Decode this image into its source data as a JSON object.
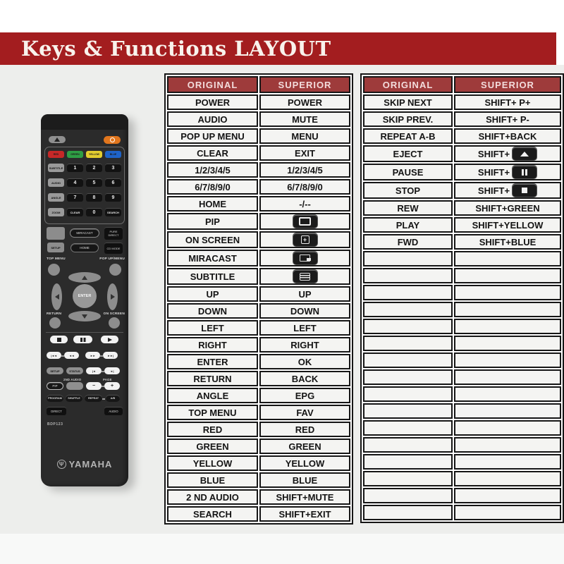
{
  "banner": {
    "title": "Keys & Functions LAYOUT"
  },
  "colors": {
    "banner_red": "#a31d1f",
    "table_header_red": "#9e3b3b",
    "page_grey": "#edeeec",
    "cell_bg": "#f4f4f2",
    "border_black": "#161616",
    "power_orange": "#e2761d",
    "key_red": "#c62828",
    "key_green": "#2e9e44",
    "key_yellow": "#e3cd2f",
    "key_blue": "#1e63c8"
  },
  "left_table": {
    "headers": [
      "ORIGINAL",
      "SUPERIOR"
    ],
    "rows": [
      {
        "original": "POWER",
        "superior": "POWER"
      },
      {
        "original": "AUDIO",
        "superior": "MUTE"
      },
      {
        "original": "POP UP MENU",
        "superior": "MENU"
      },
      {
        "original": "CLEAR",
        "superior": "EXIT"
      },
      {
        "original": "1/2/3/4/5",
        "superior": "1/2/3/4/5"
      },
      {
        "original": "6/7/8/9/0",
        "superior": "6/7/8/9/0"
      },
      {
        "original": "HOME",
        "superior": "-/--"
      },
      {
        "original": "PIP",
        "superior": "",
        "superior_icon": "pip"
      },
      {
        "original": "ON SCREEN",
        "superior": "",
        "superior_icon": "on-screen"
      },
      {
        "original": "MIRACAST",
        "superior": "",
        "superior_icon": "miracast"
      },
      {
        "original": "SUBTITLE",
        "superior": "",
        "superior_icon": "subtitle"
      },
      {
        "original": "UP",
        "superior": "UP"
      },
      {
        "original": "DOWN",
        "superior": "DOWN"
      },
      {
        "original": "LEFT",
        "superior": "LEFT"
      },
      {
        "original": "RIGHT",
        "superior": "RIGHT"
      },
      {
        "original": "ENTER",
        "superior": "OK"
      },
      {
        "original": "RETURN",
        "superior": "BACK"
      },
      {
        "original": "ANGLE",
        "superior": "EPG"
      },
      {
        "original": "TOP MENU",
        "superior": "FAV"
      },
      {
        "original": "RED",
        "superior": "RED"
      },
      {
        "original": "GREEN",
        "superior": "GREEN"
      },
      {
        "original": "YELLOW",
        "superior": "YELLOW"
      },
      {
        "original": "BLUE",
        "superior": "BLUE"
      },
      {
        "original": "2 ND AUDIO",
        "superior": "SHIFT+MUTE"
      },
      {
        "original": "SEARCH",
        "superior": "SHIFT+EXIT"
      }
    ],
    "empty_row_count": 0
  },
  "right_table": {
    "headers": [
      "ORIGINAL",
      "SUPERIOR"
    ],
    "rows": [
      {
        "original": "SKIP NEXT",
        "superior": "SHIFT+ P+"
      },
      {
        "original": "SKIP PREV.",
        "superior": "SHIFT+ P-"
      },
      {
        "original": "REPEAT A-B",
        "superior": "SHIFT+BACK"
      },
      {
        "original": "EJECT",
        "superior": "SHIFT+",
        "superior_icon": "eject"
      },
      {
        "original": "PAUSE",
        "superior": "SHIFT+",
        "superior_icon": "pause"
      },
      {
        "original": "STOP",
        "superior": "SHIFT+",
        "superior_icon": "stop"
      },
      {
        "original": "REW",
        "superior": "SHIFT+GREEN"
      },
      {
        "original": "PLAY",
        "superior": "SHIFT+YELLOW"
      },
      {
        "original": "FWD",
        "superior": "SHIFT+BLUE"
      }
    ],
    "empty_row_count": 16
  },
  "remote": {
    "brand": "YAMAHA",
    "model": "BDP123",
    "color_keys": [
      {
        "label": "RED",
        "color": "#c62828"
      },
      {
        "label": "GREEN",
        "color": "#2e9e44"
      },
      {
        "label": "YELLOW",
        "color": "#e3cd2f"
      },
      {
        "label": "BLUE",
        "color": "#1e63c8"
      }
    ],
    "keypad": [
      [
        "SUBTITLE",
        "1",
        "2",
        "3"
      ],
      [
        "AUDIO",
        "4",
        "5",
        "6"
      ],
      [
        "ANGLE",
        "7",
        "8",
        "9"
      ],
      [
        "ZOOM",
        "CLEAR",
        "0",
        "SEARCH"
      ]
    ],
    "row_miracast": {
      "center": "MIRACAST",
      "right": "PURE DIRECT"
    },
    "row_home": {
      "left": "SETUP",
      "center": "HOME",
      "right": "CD MODE"
    },
    "labels": {
      "top_menu": "TOP MENU",
      "popup_menu": "POP UP/MENU",
      "return": "RETURN",
      "on_screen": "ON SCREEN",
      "second_audio": "2ND AUDIO",
      "page": "PAGE"
    },
    "enter_label": "ENTER",
    "row_setup_status": {
      "setup": "SETUP",
      "status": "STATUS"
    },
    "row_pip": {
      "pip": "PIP",
      "minus": "−",
      "plus": "+"
    },
    "row_repeat": {
      "b1": "PROGRAM",
      "b2": "SHUFFLE",
      "b3": "REPEAT",
      "b4": "A/B"
    },
    "row_direct": {
      "left": "DIRECT",
      "right": "AUDIO"
    },
    "transport_glyphs": {
      "skip_prev": "|◄◄",
      "rew": "◄◄",
      "fwd": "►►",
      "skip_next": "►►|",
      "page_prev": "|◄",
      "page_next": "►|"
    }
  }
}
